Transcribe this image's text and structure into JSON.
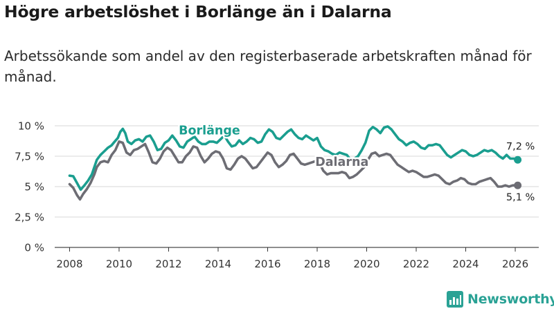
{
  "title": "Högre arbetslöshet i Borlänge än i Dalarna",
  "subtitle": "Arbetssökande som andel av den registerbaserade arbetskraften månad för månad.",
  "brand": {
    "name": "Newsworthy",
    "icon": "bar-chart-logo-icon"
  },
  "colors": {
    "borlange": "#1a9e8f",
    "dalarna": "#6d6d74",
    "grid": "#d7d7d7",
    "axis": "#333333"
  },
  "chart_data": {
    "type": "line",
    "title": "Högre arbetslöshet i Borlänge än i Dalarna",
    "xlabel": "",
    "ylabel": "",
    "xlim": [
      2007.4,
      2026.95
    ],
    "ylim": [
      0,
      10
    ],
    "x_ticks": [
      2008,
      2010,
      2012,
      2014,
      2016,
      2018,
      2020,
      2022,
      2024,
      2026
    ],
    "x_tick_labels": [
      "2008",
      "2010",
      "2012",
      "2014",
      "2016",
      "2018",
      "2020",
      "2022",
      "2024",
      "2026"
    ],
    "y_ticks": [
      0,
      2.5,
      5,
      7.5,
      10
    ],
    "y_tick_labels": [
      "0 %",
      "2,5 %",
      "5 %",
      "7,5 %",
      "10 %"
    ],
    "grid": true,
    "series": [
      {
        "name": "Borlänge",
        "color": "#1a9e8f",
        "end_label": "7,2 %",
        "end_value": 7.2,
        "points": [
          [
            2008.0,
            5.9
          ],
          [
            2008.15,
            5.85
          ],
          [
            2008.3,
            5.3
          ],
          [
            2008.45,
            4.75
          ],
          [
            2008.6,
            5.1
          ],
          [
            2008.75,
            5.5
          ],
          [
            2008.9,
            6.0
          ],
          [
            2009.0,
            6.6
          ],
          [
            2009.1,
            7.2
          ],
          [
            2009.25,
            7.6
          ],
          [
            2009.4,
            7.9
          ],
          [
            2009.55,
            8.2
          ],
          [
            2009.7,
            8.4
          ],
          [
            2009.8,
            8.65
          ],
          [
            2009.95,
            9.0
          ],
          [
            2010.05,
            9.5
          ],
          [
            2010.15,
            9.75
          ],
          [
            2010.25,
            9.4
          ],
          [
            2010.35,
            8.7
          ],
          [
            2010.5,
            8.5
          ],
          [
            2010.65,
            8.8
          ],
          [
            2010.8,
            8.9
          ],
          [
            2010.95,
            8.7
          ],
          [
            2011.1,
            9.1
          ],
          [
            2011.25,
            9.2
          ],
          [
            2011.4,
            8.7
          ],
          [
            2011.55,
            8.0
          ],
          [
            2011.7,
            8.1
          ],
          [
            2011.85,
            8.6
          ],
          [
            2012.0,
            8.8
          ],
          [
            2012.15,
            9.2
          ],
          [
            2012.3,
            8.8
          ],
          [
            2012.45,
            8.3
          ],
          [
            2012.6,
            8.2
          ],
          [
            2012.75,
            8.7
          ],
          [
            2012.9,
            8.9
          ],
          [
            2013.05,
            9.1
          ],
          [
            2013.2,
            8.7
          ],
          [
            2013.35,
            8.5
          ],
          [
            2013.5,
            8.5
          ],
          [
            2013.65,
            8.7
          ],
          [
            2013.8,
            8.7
          ],
          [
            2013.95,
            8.6
          ],
          [
            2014.1,
            8.9
          ],
          [
            2014.25,
            9.2
          ],
          [
            2014.4,
            8.7
          ],
          [
            2014.55,
            8.3
          ],
          [
            2014.7,
            8.4
          ],
          [
            2014.85,
            8.8
          ],
          [
            2015.0,
            8.5
          ],
          [
            2015.15,
            8.7
          ],
          [
            2015.3,
            9.0
          ],
          [
            2015.45,
            8.9
          ],
          [
            2015.6,
            8.6
          ],
          [
            2015.75,
            8.7
          ],
          [
            2015.9,
            9.3
          ],
          [
            2016.05,
            9.7
          ],
          [
            2016.2,
            9.5
          ],
          [
            2016.35,
            9.0
          ],
          [
            2016.5,
            8.9
          ],
          [
            2016.65,
            9.2
          ],
          [
            2016.8,
            9.5
          ],
          [
            2016.95,
            9.7
          ],
          [
            2017.1,
            9.3
          ],
          [
            2017.25,
            9.0
          ],
          [
            2017.4,
            8.9
          ],
          [
            2017.55,
            9.2
          ],
          [
            2017.7,
            9.0
          ],
          [
            2017.85,
            8.8
          ],
          [
            2018.0,
            9.0
          ],
          [
            2018.15,
            8.3
          ],
          [
            2018.3,
            8.0
          ],
          [
            2018.45,
            7.9
          ],
          [
            2018.6,
            7.7
          ],
          [
            2018.75,
            7.6
          ],
          [
            2018.9,
            7.8
          ],
          [
            2019.05,
            7.7
          ],
          [
            2019.2,
            7.6
          ],
          [
            2019.35,
            7.2
          ],
          [
            2019.5,
            7.3
          ],
          [
            2019.65,
            7.5
          ],
          [
            2019.8,
            8.0
          ],
          [
            2019.95,
            8.6
          ],
          [
            2020.1,
            9.6
          ],
          [
            2020.25,
            9.9
          ],
          [
            2020.4,
            9.7
          ],
          [
            2020.55,
            9.4
          ],
          [
            2020.7,
            9.85
          ],
          [
            2020.85,
            9.95
          ],
          [
            2021.0,
            9.7
          ],
          [
            2021.15,
            9.3
          ],
          [
            2021.3,
            8.9
          ],
          [
            2021.45,
            8.7
          ],
          [
            2021.6,
            8.4
          ],
          [
            2021.75,
            8.6
          ],
          [
            2021.9,
            8.7
          ],
          [
            2022.05,
            8.5
          ],
          [
            2022.2,
            8.2
          ],
          [
            2022.35,
            8.1
          ],
          [
            2022.5,
            8.4
          ],
          [
            2022.65,
            8.4
          ],
          [
            2022.8,
            8.5
          ],
          [
            2022.95,
            8.4
          ],
          [
            2023.1,
            8.0
          ],
          [
            2023.25,
            7.6
          ],
          [
            2023.4,
            7.4
          ],
          [
            2023.55,
            7.6
          ],
          [
            2023.7,
            7.8
          ],
          [
            2023.85,
            8.0
          ],
          [
            2024.0,
            7.9
          ],
          [
            2024.15,
            7.6
          ],
          [
            2024.3,
            7.5
          ],
          [
            2024.45,
            7.6
          ],
          [
            2024.6,
            7.8
          ],
          [
            2024.75,
            8.0
          ],
          [
            2024.9,
            7.9
          ],
          [
            2025.05,
            8.0
          ],
          [
            2025.2,
            7.8
          ],
          [
            2025.35,
            7.5
          ],
          [
            2025.5,
            7.3
          ],
          [
            2025.65,
            7.6
          ],
          [
            2025.8,
            7.3
          ],
          [
            2025.95,
            7.3
          ],
          [
            2026.1,
            7.2
          ]
        ]
      },
      {
        "name": "Dalarna",
        "color": "#6d6d74",
        "end_label": "5,1 %",
        "end_value": 5.1,
        "points": [
          [
            2008.0,
            5.2
          ],
          [
            2008.15,
            4.9
          ],
          [
            2008.3,
            4.3
          ],
          [
            2008.42,
            3.95
          ],
          [
            2008.55,
            4.4
          ],
          [
            2008.7,
            4.8
          ],
          [
            2008.85,
            5.3
          ],
          [
            2009.0,
            6.0
          ],
          [
            2009.1,
            6.6
          ],
          [
            2009.25,
            7.0
          ],
          [
            2009.4,
            7.1
          ],
          [
            2009.55,
            7.0
          ],
          [
            2009.7,
            7.6
          ],
          [
            2009.85,
            8.0
          ],
          [
            2010.0,
            8.7
          ],
          [
            2010.15,
            8.6
          ],
          [
            2010.3,
            7.8
          ],
          [
            2010.45,
            7.6
          ],
          [
            2010.6,
            8.0
          ],
          [
            2010.75,
            8.1
          ],
          [
            2010.9,
            8.3
          ],
          [
            2011.05,
            8.5
          ],
          [
            2011.2,
            7.8
          ],
          [
            2011.35,
            7.0
          ],
          [
            2011.5,
            6.9
          ],
          [
            2011.65,
            7.3
          ],
          [
            2011.8,
            7.9
          ],
          [
            2011.95,
            8.2
          ],
          [
            2012.1,
            8.0
          ],
          [
            2012.25,
            7.5
          ],
          [
            2012.4,
            7.0
          ],
          [
            2012.55,
            7.0
          ],
          [
            2012.7,
            7.5
          ],
          [
            2012.85,
            7.8
          ],
          [
            2013.0,
            8.3
          ],
          [
            2013.15,
            8.2
          ],
          [
            2013.3,
            7.5
          ],
          [
            2013.45,
            7.0
          ],
          [
            2013.6,
            7.3
          ],
          [
            2013.75,
            7.7
          ],
          [
            2013.9,
            7.9
          ],
          [
            2014.05,
            7.8
          ],
          [
            2014.2,
            7.3
          ],
          [
            2014.35,
            6.5
          ],
          [
            2014.5,
            6.4
          ],
          [
            2014.65,
            6.8
          ],
          [
            2014.8,
            7.3
          ],
          [
            2014.95,
            7.5
          ],
          [
            2015.1,
            7.3
          ],
          [
            2015.25,
            6.9
          ],
          [
            2015.4,
            6.5
          ],
          [
            2015.55,
            6.6
          ],
          [
            2015.7,
            7.0
          ],
          [
            2015.85,
            7.4
          ],
          [
            2016.0,
            7.8
          ],
          [
            2016.15,
            7.6
          ],
          [
            2016.3,
            7.0
          ],
          [
            2016.45,
            6.6
          ],
          [
            2016.6,
            6.8
          ],
          [
            2016.75,
            7.1
          ],
          [
            2016.9,
            7.6
          ],
          [
            2017.05,
            7.7
          ],
          [
            2017.2,
            7.3
          ],
          [
            2017.35,
            6.9
          ],
          [
            2017.5,
            6.8
          ],
          [
            2017.65,
            6.9
          ],
          [
            2017.8,
            7.0
          ],
          [
            2017.95,
            7.1
          ],
          [
            2018.1,
            6.9
          ],
          [
            2018.25,
            6.3
          ],
          [
            2018.4,
            6.0
          ],
          [
            2018.55,
            6.1
          ],
          [
            2018.7,
            6.1
          ],
          [
            2018.85,
            6.1
          ],
          [
            2019.0,
            6.2
          ],
          [
            2019.15,
            6.1
          ],
          [
            2019.3,
            5.7
          ],
          [
            2019.45,
            5.8
          ],
          [
            2019.6,
            6.0
          ],
          [
            2019.75,
            6.3
          ],
          [
            2019.9,
            6.6
          ],
          [
            2020.05,
            7.2
          ],
          [
            2020.2,
            7.7
          ],
          [
            2020.35,
            7.8
          ],
          [
            2020.5,
            7.5
          ],
          [
            2020.65,
            7.6
          ],
          [
            2020.8,
            7.7
          ],
          [
            2020.95,
            7.6
          ],
          [
            2021.1,
            7.2
          ],
          [
            2021.25,
            6.8
          ],
          [
            2021.4,
            6.6
          ],
          [
            2021.55,
            6.4
          ],
          [
            2021.7,
            6.2
          ],
          [
            2021.85,
            6.3
          ],
          [
            2022.0,
            6.2
          ],
          [
            2022.15,
            6.0
          ],
          [
            2022.3,
            5.8
          ],
          [
            2022.45,
            5.8
          ],
          [
            2022.6,
            5.9
          ],
          [
            2022.75,
            6.0
          ],
          [
            2022.9,
            5.9
          ],
          [
            2023.05,
            5.6
          ],
          [
            2023.2,
            5.3
          ],
          [
            2023.35,
            5.2
          ],
          [
            2023.5,
            5.4
          ],
          [
            2023.65,
            5.5
          ],
          [
            2023.8,
            5.7
          ],
          [
            2023.95,
            5.6
          ],
          [
            2024.1,
            5.3
          ],
          [
            2024.25,
            5.2
          ],
          [
            2024.4,
            5.2
          ],
          [
            2024.55,
            5.4
          ],
          [
            2024.7,
            5.5
          ],
          [
            2024.85,
            5.6
          ],
          [
            2025.0,
            5.7
          ],
          [
            2025.15,
            5.4
          ],
          [
            2025.3,
            5.0
          ],
          [
            2025.45,
            5.0
          ],
          [
            2025.6,
            5.1
          ],
          [
            2025.75,
            5.0
          ],
          [
            2025.9,
            5.1
          ],
          [
            2026.1,
            5.1
          ]
        ]
      }
    ],
    "annotations": [
      {
        "series": "Borlänge",
        "text": "Borlänge",
        "at_x": 2013.65,
        "at_y": 9.3
      },
      {
        "series": "Dalarna",
        "text": "Dalarna",
        "at_x": 2019.0,
        "at_y": 6.7
      }
    ]
  }
}
